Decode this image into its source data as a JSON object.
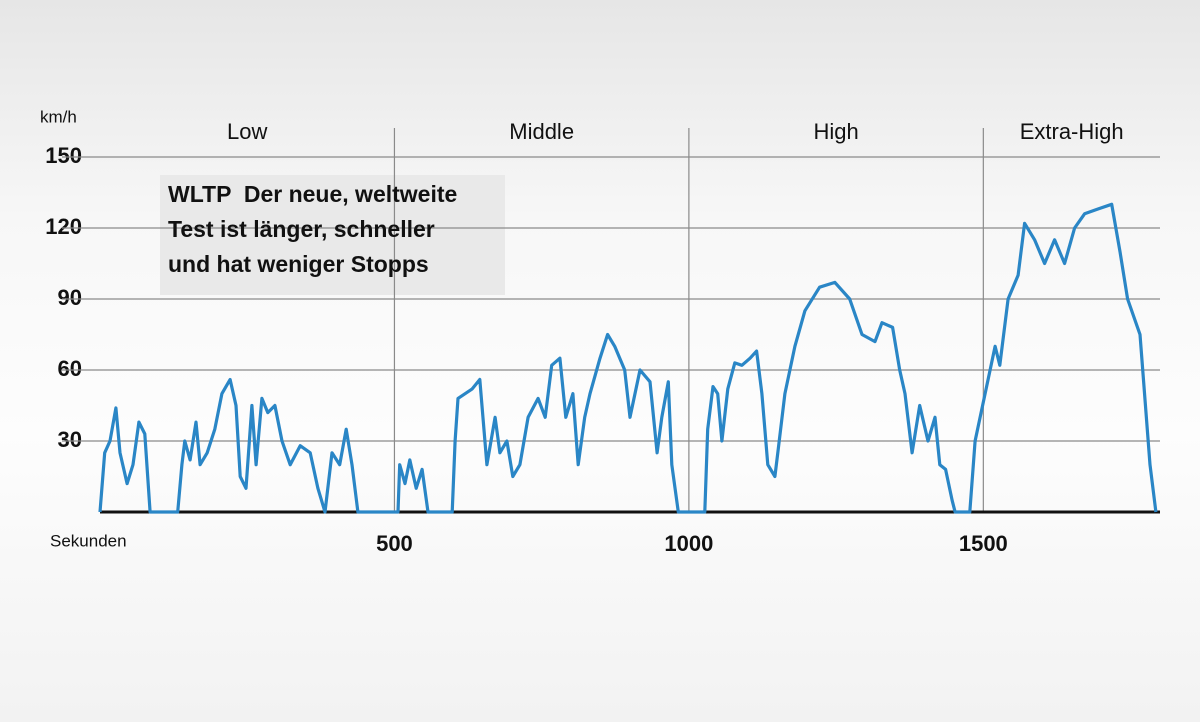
{
  "chart_data": {
    "type": "line",
    "y_label": "km/h",
    "x_label": "Sekunden",
    "phases": [
      "Low",
      "Middle",
      "High",
      "Extra-High"
    ],
    "annotation": {
      "bold": "WLTP",
      "lines": [
        "Der neue, weltweite",
        "Test ist länger, schneller",
        "und hat weniger Stopps"
      ]
    },
    "xlim": [
      0,
      1800
    ],
    "xticks": [
      500,
      1000,
      1500
    ],
    "ylim": [
      0,
      150
    ],
    "yticks": [
      30,
      60,
      90,
      120,
      150
    ],
    "grid": true,
    "color": "#2a86c6",
    "x": [
      0,
      8,
      17,
      27,
      34,
      46,
      56,
      66,
      76,
      85,
      132,
      139,
      144,
      153,
      163,
      170,
      182,
      195,
      207,
      221,
      231,
      238,
      248,
      258,
      265,
      275,
      285,
      297,
      309,
      323,
      340,
      357,
      370,
      382,
      394,
      407,
      418,
      428,
      438,
      506,
      509,
      518,
      526,
      537,
      547,
      557,
      598,
      603,
      608,
      620,
      632,
      645,
      657,
      671,
      679,
      691,
      701,
      713,
      727,
      744,
      756,
      767,
      781,
      791,
      803,
      812,
      823,
      832,
      849,
      862,
      874,
      891,
      900,
      917,
      934,
      946,
      954,
      965,
      971,
      982,
      1027,
      1032,
      1041,
      1049,
      1056,
      1066,
      1078,
      1090,
      1104,
      1115,
      1124,
      1134,
      1146,
      1151,
      1163,
      1180,
      1197,
      1222,
      1248,
      1273,
      1294,
      1316,
      1328,
      1346,
      1358,
      1367,
      1379,
      1392,
      1406,
      1418,
      1426,
      1436,
      1447,
      1452,
      1477,
      1486,
      1503,
      1520,
      1528,
      1542,
      1559,
      1570,
      1587,
      1604,
      1621,
      1638,
      1655,
      1672,
      1694,
      1718,
      1732,
      1745,
      1766,
      1783,
      1793
    ],
    "values": [
      0,
      25,
      30,
      44,
      25,
      12,
      20,
      38,
      33,
      0,
      0,
      20,
      30,
      22,
      38,
      20,
      25,
      35,
      50,
      56,
      45,
      15,
      10,
      45,
      20,
      48,
      42,
      45,
      30,
      20,
      28,
      25,
      10,
      0,
      25,
      20,
      35,
      20,
      0,
      0,
      20,
      12,
      22,
      10,
      18,
      0,
      0,
      30,
      48,
      50,
      52,
      56,
      20,
      40,
      25,
      30,
      15,
      20,
      40,
      48,
      40,
      62,
      65,
      40,
      50,
      20,
      40,
      50,
      65,
      75,
      70,
      60,
      40,
      60,
      55,
      25,
      40,
      55,
      20,
      0,
      0,
      35,
      53,
      50,
      30,
      52,
      63,
      62,
      65,
      68,
      50,
      20,
      15,
      25,
      50,
      70,
      85,
      95,
      97,
      90,
      75,
      72,
      80,
      78,
      60,
      50,
      25,
      45,
      30,
      40,
      20,
      18,
      5,
      0,
      0,
      30,
      50,
      70,
      62,
      90,
      100,
      122,
      115,
      105,
      115,
      105,
      120,
      126,
      128,
      130,
      110,
      90,
      75,
      20,
      0
    ]
  }
}
